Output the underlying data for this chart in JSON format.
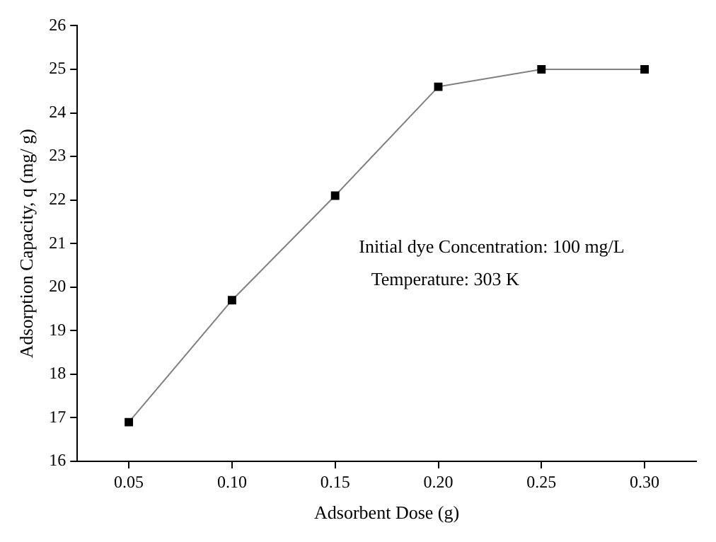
{
  "chart_data": {
    "type": "line",
    "xlabel": "Adsorbent Dose (g)",
    "ylabel": "Adsorption Capacity, q (mg/ g)",
    "x": [
      0.05,
      0.1,
      0.15,
      0.2,
      0.25,
      0.3
    ],
    "series": [
      {
        "color": "#000000",
        "values": [
          16.9,
          19.7,
          22.1,
          24.6,
          25.0,
          25.0
        ]
      }
    ],
    "xlim": [
      0.025,
      0.325
    ],
    "xticks": [
      {
        "value": 0.05,
        "label": "0.05"
      },
      {
        "value": 0.1,
        "label": "0.10"
      },
      {
        "value": 0.15,
        "label": "0.15"
      },
      {
        "value": 0.2,
        "label": "0.20"
      },
      {
        "value": 0.25,
        "label": "0.25"
      },
      {
        "value": 0.3,
        "label": "0.30"
      }
    ],
    "ylim": [
      16,
      26
    ],
    "yticks": [
      16,
      17,
      18,
      19,
      20,
      21,
      22,
      23,
      24,
      25,
      26
    ],
    "annotations": [
      "Initial dye Concentration: 100 mg/L",
      "Temperature: 303 K"
    ],
    "grid": false,
    "legend": false,
    "marker": "square",
    "line_style": "solid"
  }
}
